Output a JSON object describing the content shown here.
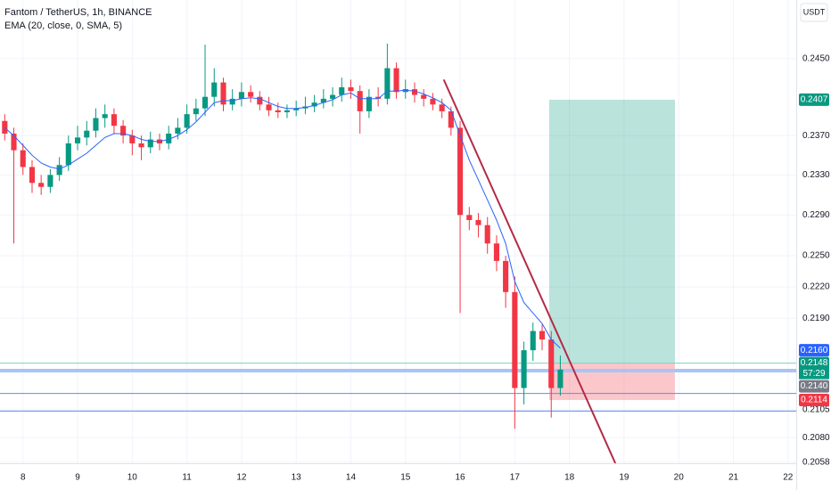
{
  "chart_data": {
    "type": "candlestick",
    "title": "Fantom / TetherUS, 1h, BINANCE",
    "subtitle": "EMA (20, close, 0, SMA, 5)",
    "currency": "USDT",
    "timer": "57:29",
    "log_scale": true,
    "grid": true,
    "up_color": "#089981",
    "down_color": "#f23645",
    "xlim": [
      7.58,
      22.15
    ],
    "xticks": [
      8,
      9,
      10,
      11,
      12,
      13,
      14,
      15,
      16,
      17,
      18,
      19,
      20,
      21,
      22
    ],
    "ylim": [
      0.2057,
      0.2513
    ],
    "yticks": [
      {
        "value": 0.245,
        "label": "0.2450"
      },
      {
        "value": 0.237,
        "label": "0.2370"
      },
      {
        "value": 0.233,
        "label": "0.2330"
      },
      {
        "value": 0.229,
        "label": "0.2290"
      },
      {
        "value": 0.225,
        "label": "0.2250"
      },
      {
        "value": 0.222,
        "label": "0.2220"
      },
      {
        "value": 0.219,
        "label": "0.2190"
      },
      {
        "value": 0.2105,
        "label": "0.2105"
      },
      {
        "value": 0.208,
        "label": "0.2080"
      },
      {
        "value": 0.2058,
        "label": "0.2058"
      }
    ],
    "x": [
      7.667,
      7.833,
      8.0,
      8.167,
      8.333,
      8.5,
      8.667,
      8.833,
      9.0,
      9.167,
      9.333,
      9.5,
      9.667,
      9.833,
      10.0,
      10.167,
      10.333,
      10.5,
      10.667,
      10.833,
      11.0,
      11.167,
      11.333,
      11.5,
      11.667,
      11.833,
      12.0,
      12.167,
      12.333,
      12.5,
      12.667,
      12.833,
      13.0,
      13.167,
      13.333,
      13.5,
      13.667,
      13.833,
      14.0,
      14.167,
      14.333,
      14.5,
      14.667,
      14.833,
      15.0,
      15.167,
      15.333,
      15.5,
      15.667,
      15.833,
      16.0,
      16.167,
      16.333,
      16.5,
      16.667,
      16.833,
      17.0,
      17.167,
      17.333,
      17.5,
      17.667,
      17.833
    ],
    "open": [
      0.2385,
      0.2372,
      0.2355,
      0.2338,
      0.2322,
      0.2318,
      0.233,
      0.234,
      0.2362,
      0.2368,
      0.2375,
      0.2388,
      0.2392,
      0.238,
      0.237,
      0.2362,
      0.2358,
      0.2366,
      0.2362,
      0.2372,
      0.2378,
      0.2392,
      0.2398,
      0.241,
      0.2425,
      0.2402,
      0.2408,
      0.2415,
      0.241,
      0.2402,
      0.2396,
      0.2394,
      0.2396,
      0.2398,
      0.24,
      0.2404,
      0.2408,
      0.2412,
      0.242,
      0.2416,
      0.2395,
      0.241,
      0.2408,
      0.244,
      0.2415,
      0.2418,
      0.2412,
      0.2408,
      0.2402,
      0.2395,
      0.2378,
      0.229,
      0.2285,
      0.228,
      0.2262,
      0.2245,
      0.2215,
      0.2125,
      0.216,
      0.2178,
      0.217,
      0.2125
    ],
    "high": [
      0.2392,
      0.2378,
      0.2362,
      0.2345,
      0.233,
      0.2336,
      0.2348,
      0.237,
      0.238,
      0.2385,
      0.2398,
      0.2402,
      0.2398,
      0.2386,
      0.2376,
      0.237,
      0.2374,
      0.2372,
      0.238,
      0.2388,
      0.2402,
      0.2408,
      0.2465,
      0.244,
      0.243,
      0.2418,
      0.2425,
      0.2422,
      0.2416,
      0.241,
      0.2404,
      0.2402,
      0.2406,
      0.241,
      0.2412,
      0.2418,
      0.242,
      0.243,
      0.2428,
      0.2422,
      0.2418,
      0.242,
      0.2466,
      0.2446,
      0.2428,
      0.2425,
      0.2418,
      0.2414,
      0.2408,
      0.24,
      0.2385,
      0.2298,
      0.2292,
      0.2288,
      0.227,
      0.225,
      0.223,
      0.2168,
      0.2186,
      0.2184,
      0.2178,
      0.2155
    ],
    "low": [
      0.2365,
      0.2262,
      0.233,
      0.2312,
      0.231,
      0.2312,
      0.2324,
      0.2334,
      0.2355,
      0.236,
      0.2368,
      0.2378,
      0.2372,
      0.2362,
      0.235,
      0.2345,
      0.2352,
      0.2355,
      0.2356,
      0.2366,
      0.2372,
      0.2385,
      0.239,
      0.24,
      0.2395,
      0.2396,
      0.24,
      0.2404,
      0.2396,
      0.239,
      0.2388,
      0.2388,
      0.239,
      0.2392,
      0.2394,
      0.2398,
      0.24,
      0.2405,
      0.2408,
      0.2372,
      0.2388,
      0.24,
      0.2402,
      0.2408,
      0.2408,
      0.2404,
      0.24,
      0.2396,
      0.2388,
      0.237,
      0.2195,
      0.2275,
      0.2268,
      0.2252,
      0.2235,
      0.22,
      0.2088,
      0.211,
      0.215,
      0.216,
      0.2098,
      0.2118
    ],
    "close": [
      0.2372,
      0.2355,
      0.2338,
      0.2322,
      0.2318,
      0.233,
      0.234,
      0.2362,
      0.2368,
      0.2375,
      0.2388,
      0.2392,
      0.238,
      0.237,
      0.2362,
      0.2358,
      0.2366,
      0.2362,
      0.2372,
      0.2378,
      0.2392,
      0.2398,
      0.241,
      0.2425,
      0.2402,
      0.2408,
      0.2415,
      0.241,
      0.2402,
      0.2396,
      0.2394,
      0.2396,
      0.2398,
      0.24,
      0.2404,
      0.2408,
      0.2412,
      0.242,
      0.2416,
      0.2395,
      0.241,
      0.2408,
      0.244,
      0.2415,
      0.2418,
      0.2412,
      0.2408,
      0.2402,
      0.2395,
      0.2378,
      0.229,
      0.2285,
      0.228,
      0.2262,
      0.2245,
      0.2215,
      0.2125,
      0.216,
      0.2178,
      0.217,
      0.2125,
      0.2142
    ],
    "ema": {
      "color": "#2962ff",
      "values": [
        0.2378,
        0.237,
        0.236,
        0.235,
        0.2342,
        0.2338,
        0.2336,
        0.234,
        0.2346,
        0.2352,
        0.236,
        0.2368,
        0.2372,
        0.2372,
        0.237,
        0.2366,
        0.2364,
        0.2364,
        0.2366,
        0.237,
        0.2376,
        0.2384,
        0.2394,
        0.2404,
        0.2406,
        0.2406,
        0.2408,
        0.2409,
        0.2408,
        0.2404,
        0.24,
        0.2398,
        0.2398,
        0.2399,
        0.2401,
        0.2404,
        0.2407,
        0.2412,
        0.2414,
        0.2408,
        0.2408,
        0.2408,
        0.2416,
        0.2416,
        0.2417,
        0.2416,
        0.2413,
        0.2409,
        0.2404,
        0.2396,
        0.237,
        0.2345,
        0.2325,
        0.2305,
        0.2285,
        0.2262,
        0.2225,
        0.2205,
        0.2195,
        0.2185,
        0.217,
        0.2162
      ]
    },
    "trendline": {
      "color": "#b22b47",
      "x": [
        15.7,
        18.84
      ],
      "y": [
        0.2428,
        0.2057
      ]
    },
    "position": {
      "x": [
        17.63,
        19.93
      ],
      "entry": 0.2148,
      "target": 0.2407,
      "stop": 0.2114
    },
    "hlines": [
      {
        "value": 0.2148,
        "color": "#7fd1b9",
        "width": 1
      },
      {
        "value": 0.2141,
        "color": "#a9c4f5",
        "width": 4
      },
      {
        "value": 0.212,
        "color": "#5b8def",
        "width": 1
      },
      {
        "value": 0.2104,
        "color": "#5b8def",
        "width": 1
      }
    ],
    "price_tags": [
      {
        "value": 0.2407,
        "label": "0.2407",
        "color": "#089981"
      },
      {
        "value": 0.216,
        "label": "0.2160",
        "color": "#2962ff"
      },
      {
        "value": 0.2148,
        "label": "0.2148",
        "color": "#089981"
      },
      {
        "value": 0.214,
        "label": "0.2140",
        "color": "#787b86"
      },
      {
        "value": 0.2114,
        "label": "0.2114",
        "color": "#f23645"
      }
    ]
  }
}
